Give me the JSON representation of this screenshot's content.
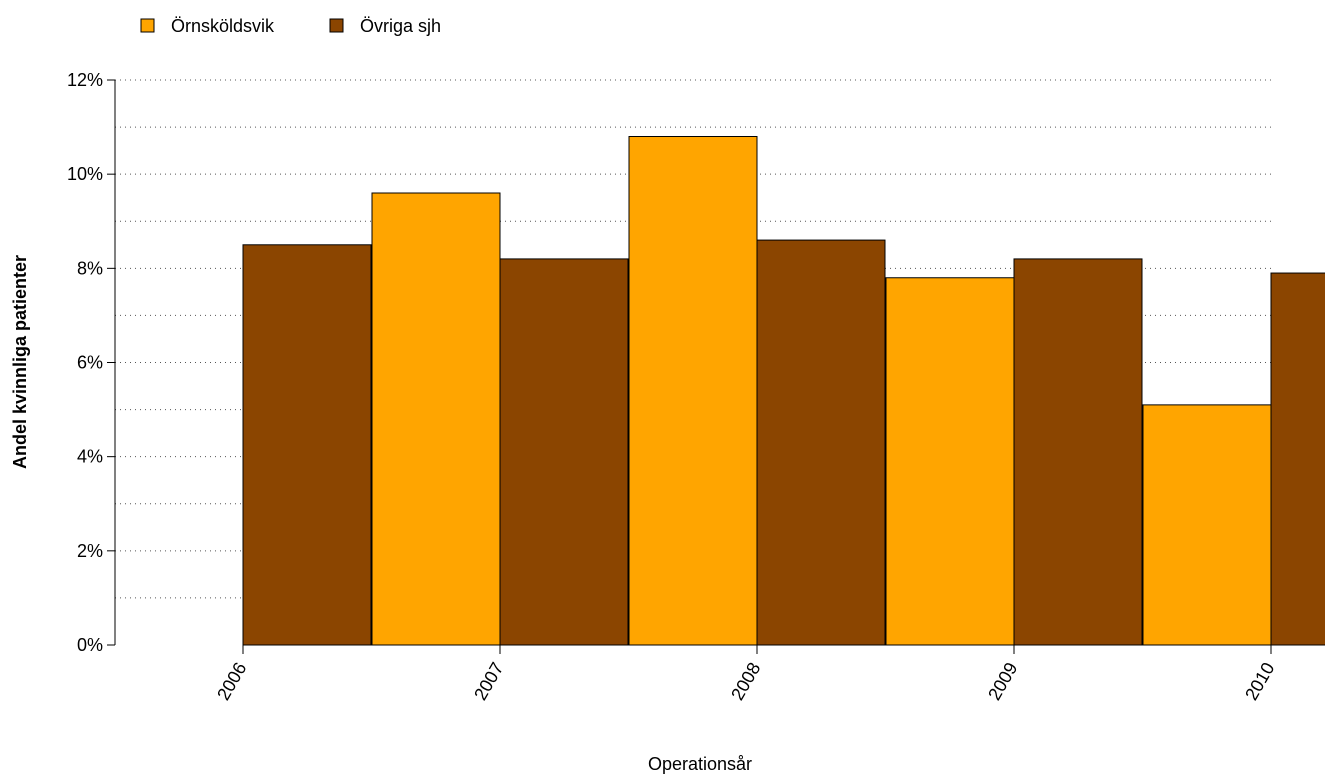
{
  "chart_data": {
    "type": "bar",
    "title": "",
    "xlabel": "Operationsår",
    "ylabel": "Andel kvinnliga patienter",
    "categories": [
      "2006",
      "2007",
      "2008",
      "2009",
      "2010"
    ],
    "series": [
      {
        "name": "Örnsköldsvik",
        "color": "#FFA500",
        "values": [
          null,
          9.6,
          10.8,
          7.8,
          5.1
        ]
      },
      {
        "name": "Övriga sjh",
        "color": "#8B4500",
        "values": [
          8.5,
          8.2,
          8.6,
          8.2,
          7.9
        ]
      }
    ],
    "ylim": [
      0,
      12
    ],
    "yticks": [
      0,
      2,
      4,
      6,
      8,
      10,
      12
    ],
    "ytick_labels": [
      "0%",
      "2%",
      "4%",
      "6%",
      "8%",
      "10%",
      "12%"
    ],
    "minor_gridlines": [
      1,
      3,
      5,
      7,
      9,
      11
    ],
    "grid": "dotted horizontal",
    "legend_position": "top-left"
  }
}
